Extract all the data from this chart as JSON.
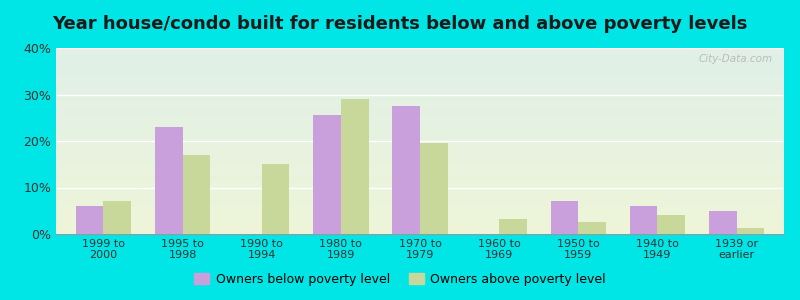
{
  "title": "Year house/condo built for residents below and above poverty levels",
  "categories": [
    "1999 to\n2000",
    "1995 to\n1998",
    "1990 to\n1994",
    "1980 to\n1989",
    "1970 to\n1979",
    "1960 to\n1969",
    "1950 to\n1959",
    "1940 to\n1949",
    "1939 or\nearlier"
  ],
  "below_poverty": [
    6.0,
    23.0,
    0.0,
    25.5,
    27.5,
    0.0,
    7.0,
    6.0,
    5.0
  ],
  "above_poverty": [
    7.0,
    17.0,
    15.0,
    29.0,
    19.5,
    3.2,
    2.5,
    4.0,
    1.2
  ],
  "below_color": "#c9a0dc",
  "above_color": "#c8d89a",
  "ylim": [
    0,
    40
  ],
  "yticks": [
    0,
    10,
    20,
    30,
    40
  ],
  "ytick_labels": [
    "0%",
    "10%",
    "20%",
    "30%",
    "40%"
  ],
  "legend_below": "Owners below poverty level",
  "legend_above": "Owners above poverty level",
  "bg_outer": "#00e5e5",
  "title_fontsize": 13,
  "bar_width": 0.35
}
